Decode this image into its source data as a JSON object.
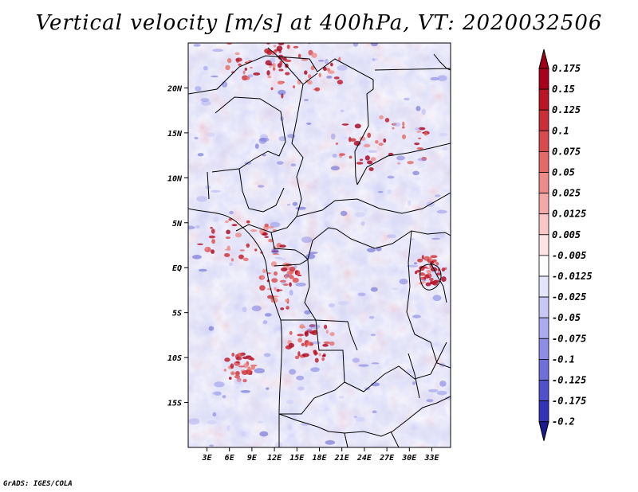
{
  "title": "Vertical velocity [m/s] at 400hPa, VT: 2020032506",
  "credit": "GrADS: IGES/COLA",
  "map": {
    "lat_ticks": [
      {
        "lat": 20,
        "label": "20N"
      },
      {
        "lat": 15,
        "label": "15N"
      },
      {
        "lat": 10,
        "label": "10N"
      },
      {
        "lat": 5,
        "label": "5N"
      },
      {
        "lat": 0,
        "label": "EQ"
      },
      {
        "lat": -5,
        "label": "5S"
      },
      {
        "lat": -10,
        "label": "10S"
      },
      {
        "lat": -15,
        "label": "15S"
      }
    ],
    "lon_ticks": [
      {
        "lon": 3,
        "label": "3E"
      },
      {
        "lon": 6,
        "label": "6E"
      },
      {
        "lon": 9,
        "label": "9E"
      },
      {
        "lon": 12,
        "label": "12E"
      },
      {
        "lon": 15,
        "label": "15E"
      },
      {
        "lon": 18,
        "label": "18E"
      },
      {
        "lon": 21,
        "label": "21E"
      },
      {
        "lon": 24,
        "label": "24E"
      },
      {
        "lon": 27,
        "label": "27E"
      },
      {
        "lon": 30,
        "label": "30E"
      },
      {
        "lon": 33,
        "label": "33E"
      }
    ],
    "lon_range": [
      0.5,
      35.5
    ],
    "lat_range": [
      -20,
      25
    ]
  },
  "colorbar": {
    "levels": [
      {
        "label": "0.175",
        "color": "#a8001c"
      },
      {
        "label": "0.15",
        "color": "#bb1525"
      },
      {
        "label": "0.125",
        "color": "#cb2e35"
      },
      {
        "label": "0.1",
        "color": "#d84a4b"
      },
      {
        "label": "0.075",
        "color": "#e36a66"
      },
      {
        "label": "0.05",
        "color": "#ec8b87"
      },
      {
        "label": "0.025",
        "color": "#f3aaa7"
      },
      {
        "label": "0.0125",
        "color": "#f9c8c6"
      },
      {
        "label": "0.005",
        "color": "#fde3e2"
      },
      {
        "label": "-0.005",
        "color": "#ffffff"
      },
      {
        "label": "-0.0125",
        "color": "#e4e4fb"
      },
      {
        "label": "-0.025",
        "color": "#c8c8f6"
      },
      {
        "label": "-0.05",
        "color": "#ababf0"
      },
      {
        "label": "-0.075",
        "color": "#8d8de8"
      },
      {
        "label": "-0.1",
        "color": "#6f6fdc"
      },
      {
        "label": "-0.125",
        "color": "#5050cc"
      },
      {
        "label": "-0.175",
        "color": "#3333b8"
      },
      {
        "label": "-0.2",
        "color": "#1d1da0"
      }
    ],
    "top_cap_color": "#a00018",
    "bottom_cap_color": "#1a1a90"
  }
}
